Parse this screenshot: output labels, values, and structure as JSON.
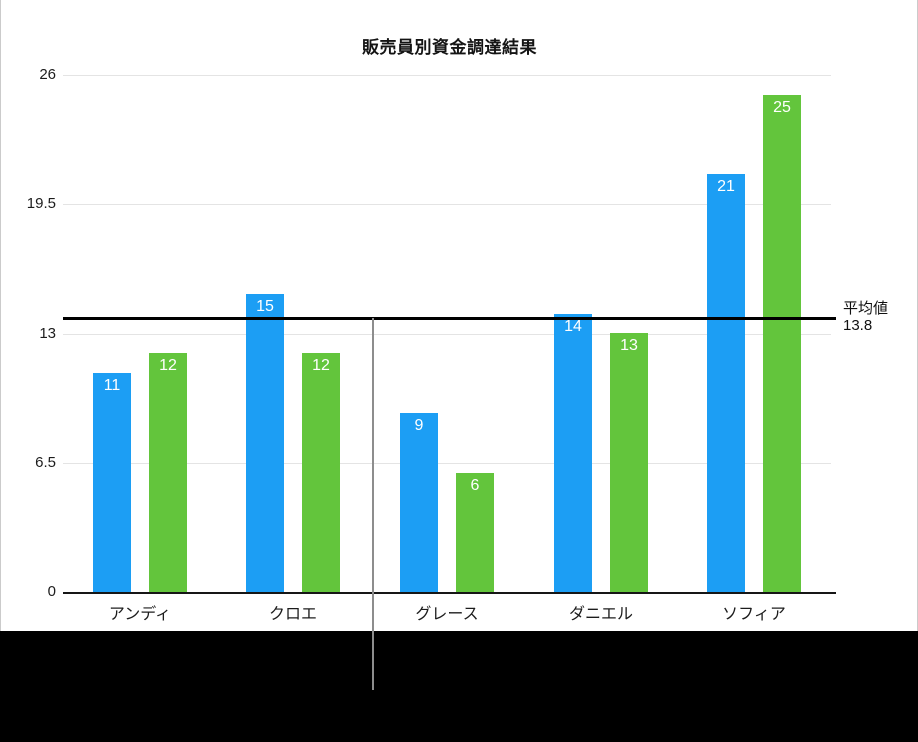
{
  "chart_data": {
    "type": "bar",
    "title": "販売員別資金調達結果",
    "categories": [
      "アンディ",
      "クロエ",
      "グレース",
      "ダニエル",
      "ソフィア"
    ],
    "series": [
      {
        "name": "series-blue",
        "color": "#1c9ef4",
        "values": [
          11,
          15,
          9,
          14,
          21
        ]
      },
      {
        "name": "series-green",
        "color": "#63c53c",
        "values": [
          12,
          12,
          6,
          13,
          25
        ]
      }
    ],
    "ylim": [
      0,
      26
    ],
    "yticks": [
      0,
      6.5,
      13,
      19.5,
      26
    ],
    "ytick_labels": [
      "0",
      "6.5",
      "13",
      "19.5",
      "26"
    ],
    "grid": true,
    "legend": "none",
    "value_labels": "inside-top-white",
    "average_line": {
      "value": 13.8,
      "label": "平均値",
      "value_label": "13.8",
      "color": "#000000"
    }
  }
}
